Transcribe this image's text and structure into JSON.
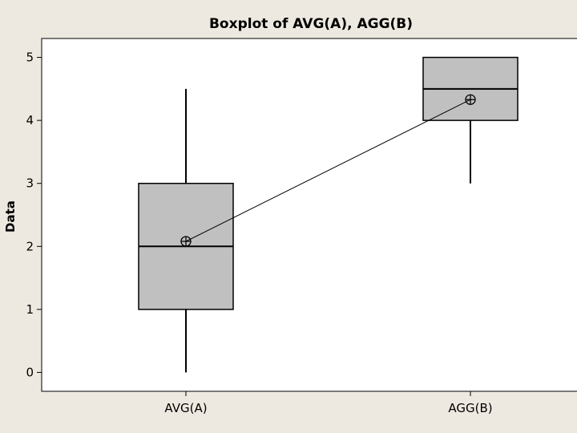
{
  "chart_data": {
    "type": "boxplot",
    "title": "Boxplot of AVG(A), AGG(B)",
    "xlabel": "",
    "ylabel": "Data",
    "ylim": [
      -0.3,
      5.3
    ],
    "yticks": [
      0,
      1,
      2,
      3,
      4,
      5
    ],
    "grid": false,
    "categories": [
      "AVG(A)",
      "AGG(B)"
    ],
    "boxes": [
      {
        "category": "AVG(A)",
        "whisker_low": 0,
        "q1": 1,
        "median": 2,
        "q3": 3,
        "whisker_high": 4.5,
        "mean": 2.08
      },
      {
        "category": "AGG(B)",
        "whisker_low": 3,
        "q1": 4,
        "median": 4.5,
        "q3": 5,
        "whisker_high": 5,
        "mean": 4.33
      }
    ],
    "mean_line": true,
    "colors": {
      "box_fill": "#c0c0c0",
      "stroke": "#000000",
      "background": "#eee9e0",
      "plot_bg": "#ffffff"
    }
  }
}
